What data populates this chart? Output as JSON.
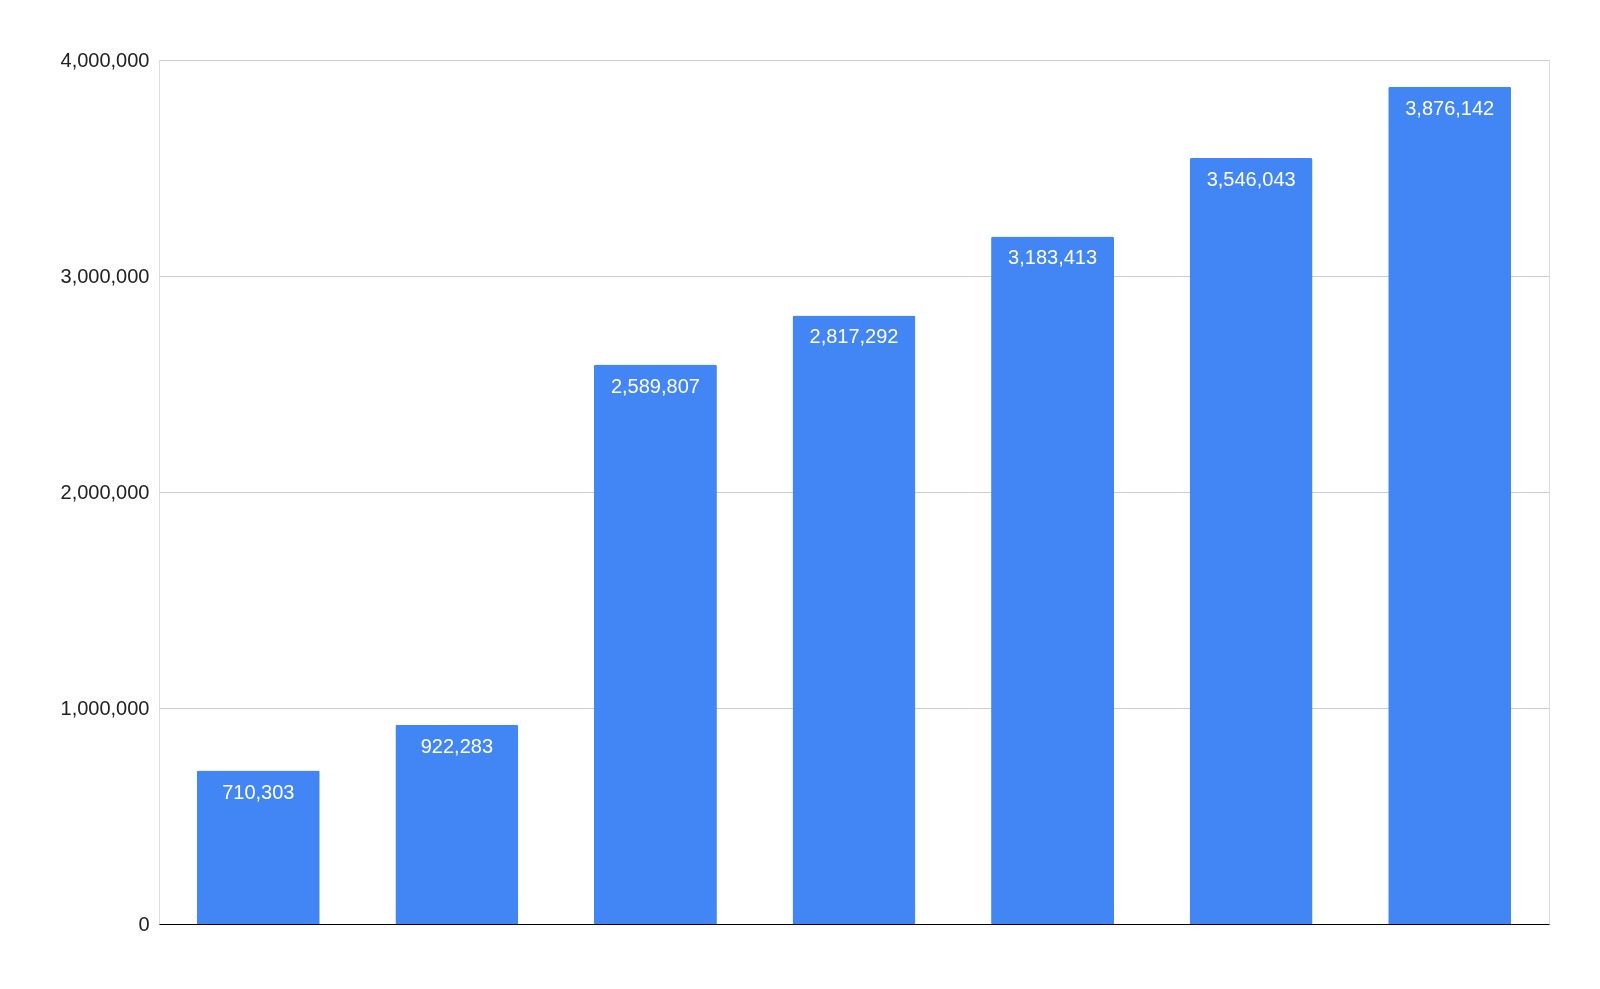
{
  "chart_data": {
    "type": "bar",
    "categories": [
      null,
      null,
      null,
      null,
      null,
      null,
      null
    ],
    "values": [
      710303,
      922283,
      2589807,
      2817292,
      3183413,
      3546043,
      3876142
    ],
    "color": "#4285f4",
    "value_labels": [
      "710,303",
      "922,283",
      "2,589,807",
      "2,817,292",
      "3,183,413",
      "3,546,043",
      "3,876,142"
    ],
    "ylim": [
      0,
      4000000
    ],
    "yticks": [
      0,
      {
        "value": 1000000,
        "label": "1,000,000"
      },
      {
        "value": 2000000,
        "label": "2,000,000"
      },
      {
        "value": 3000000,
        "label": "3,000,000"
      },
      {
        "value": 4000000,
        "label": "4,000,000"
      }
    ],
    "grid": "y",
    "tick_labels": "y"
  }
}
